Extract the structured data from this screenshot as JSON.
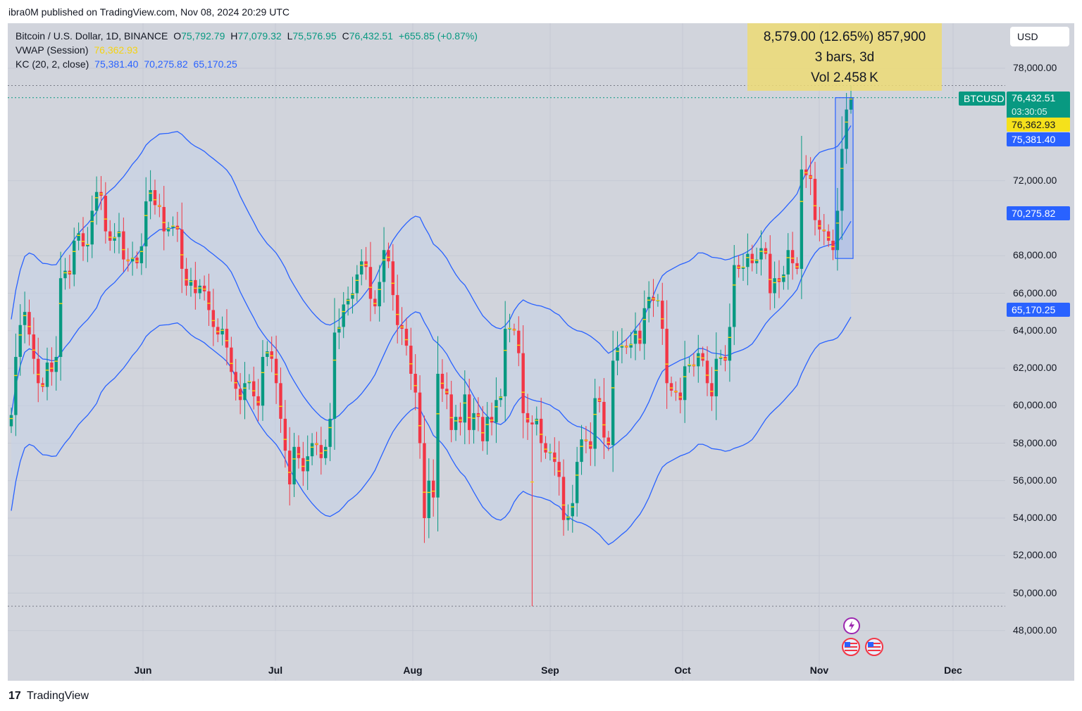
{
  "header": {
    "published": "ibra0M published on TradingView.com, Nov 08, 2024 20:29 UTC"
  },
  "legend": {
    "symbol": "Bitcoin / U.S. Dollar, 1D, BINANCE",
    "o_label": "O",
    "o_value": "75,792.79",
    "h_label": "H",
    "h_value": "77,079.32",
    "l_label": "L",
    "l_value": "75,576.95",
    "c_label": "C",
    "c_value": "76,432.51",
    "change": "+655.85 (+0.87%)",
    "vwap_label": "VWAP (Session)",
    "vwap_value": "76,362.93",
    "kc_label": "KC (20, 2, close)",
    "kc_upper": "75,381.40",
    "kc_mid": "70,275.82",
    "kc_lower": "65,170.25"
  },
  "currency_button": "USD",
  "measure": {
    "line1": "8,579.00 (12.65%) 857,900",
    "line2": "3 bars, 3d",
    "line3": "Vol 2.458 K"
  },
  "price_tags": {
    "symbol": "BTCUSD",
    "last": "76,432.51",
    "countdown": "03:30:05",
    "vwap": "76,362.93",
    "kc_upper": "75,381.40",
    "kc_mid": "70,275.82",
    "kc_lower": "65,170.25"
  },
  "footer": {
    "brand": "TradingView",
    "logo_text": "17"
  },
  "colors": {
    "up": "#089981",
    "down": "#f23645",
    "band": "#2962ff",
    "vwap": "#f5d312",
    "band_fill": "#c7d2e8",
    "bg": "#d1d4dc"
  },
  "chart_data": {
    "type": "candlestick",
    "title": "Bitcoin / U.S. Dollar, 1D, BINANCE",
    "y_ticks": [
      "78,000.00",
      "72,000.00",
      "68,000.00",
      "66,000.00",
      "64,000.00",
      "62,000.00",
      "60,000.00",
      "58,000.00",
      "56,000.00",
      "54,000.00",
      "52,000.00",
      "50,000.00",
      "48,000.00"
    ],
    "x_ticks": [
      "Jun",
      "Jul",
      "Aug",
      "Sep",
      "Oct",
      "Nov",
      "Dec"
    ],
    "ylim": [
      47000,
      79500
    ],
    "grid": true,
    "series": [
      {
        "name": "BTCUSD",
        "close": [
          59500,
          62600,
          64300,
          65000,
          63800,
          62500,
          61200,
          61000,
          62300,
          61800,
          62600,
          66800,
          67200,
          67000,
          68800,
          69200,
          68500,
          68600,
          70400,
          71400,
          71200,
          69300,
          68800,
          69000,
          69300,
          67800,
          67700,
          67900,
          67600,
          68500,
          70900,
          71500,
          70700,
          70600,
          69300,
          69500,
          69600,
          69400,
          67300,
          66400,
          66700,
          66000,
          66400,
          66100,
          65100,
          64200,
          63800,
          64100,
          63100,
          61800,
          60900,
          60300,
          61200,
          61300,
          60500,
          60000,
          62600,
          62900,
          62500,
          61200,
          59300,
          57600,
          55800,
          57800,
          57200,
          56500,
          57300,
          58000,
          57900,
          57200,
          57800,
          59300,
          63900,
          64200,
          65400,
          65700,
          66000,
          67000,
          67700,
          67400,
          65700,
          65300,
          66600,
          68300,
          67700,
          65900,
          64300,
          64100,
          63200,
          61700,
          60700,
          58000,
          54000,
          56000,
          55100,
          61700,
          60900,
          60600,
          58700,
          59400,
          59100,
          60600,
          58700,
          59600,
          59400,
          58100,
          59400,
          59100,
          60300,
          60500,
          64100,
          64100,
          64000,
          62800,
          59600,
          59100,
          59000,
          59300,
          58000,
          57500,
          57500,
          57000,
          56200,
          53900,
          54100,
          54800,
          57000,
          58200,
          58100,
          57700,
          60400,
          60200,
          58300,
          57900,
          62400,
          63100,
          63200,
          63100,
          63300,
          64000,
          63300,
          65200,
          65800,
          65600,
          65600,
          64100,
          61200,
          60800,
          60700,
          60300,
          62100,
          62200,
          62100,
          62800,
          62400,
          61200,
          60500,
          62500,
          62600,
          62400,
          64200,
          67500,
          67300,
          67400,
          68100,
          67600,
          67800,
          68400,
          68100,
          66000,
          66800,
          66600,
          67000,
          68300,
          67600,
          67300,
          72600,
          72300,
          72100,
          69900,
          69400,
          69300,
          68800,
          68300,
          70400,
          73700,
          75800,
          76432.51
        ]
      },
      {
        "name": "KC upper",
        "values_from": "legend.kc_upper"
      }
    ]
  }
}
